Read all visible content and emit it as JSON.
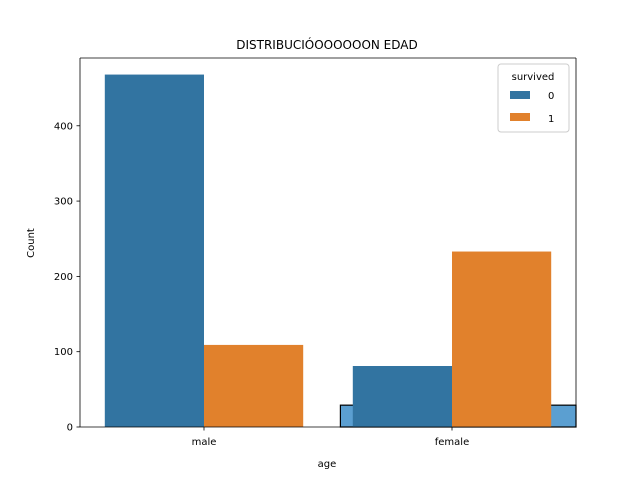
{
  "chart_data": {
    "type": "bar",
    "title": "DISTRIBUCIÓOOOOOON EDAD",
    "xlabel": "age",
    "ylabel": "Count",
    "categories": [
      "male",
      "female"
    ],
    "series": [
      {
        "name": "0",
        "values": [
          468,
          81
        ],
        "color": "#3274a1"
      },
      {
        "name": "1",
        "values": [
          109,
          233
        ],
        "color": "#e1812c"
      }
    ],
    "extra_bar": {
      "x_range": [
        0.55,
        1.5
      ],
      "value": 29,
      "color": "#5b9fd1"
    },
    "ylim": [
      0,
      490
    ],
    "yticks": [
      0,
      100,
      200,
      300,
      400
    ],
    "legend": {
      "title": "survived",
      "position": "top-right"
    },
    "grid": false
  }
}
